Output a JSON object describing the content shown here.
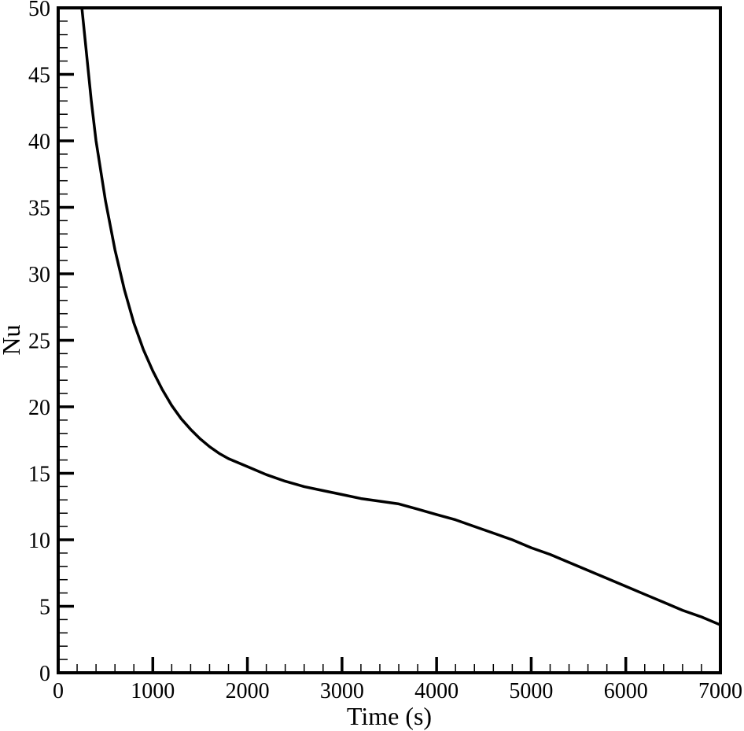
{
  "chart_data": {
    "type": "line",
    "title": "",
    "xlabel": "Time (s)",
    "ylabel": "Nu",
    "xlim": [
      0,
      7000
    ],
    "ylim": [
      0,
      50
    ],
    "grid": false,
    "legend": null,
    "x_ticks": [
      0,
      1000,
      2000,
      3000,
      4000,
      5000,
      6000,
      7000
    ],
    "x_tick_labels": [
      "0",
      "1000",
      "2000",
      "3000",
      "4000",
      "5000",
      "6000",
      "7000"
    ],
    "x_minor_step": 200,
    "y_ticks": [
      0,
      5,
      10,
      15,
      20,
      25,
      30,
      35,
      40,
      45,
      50
    ],
    "y_tick_labels": [
      "0",
      "5",
      "10",
      "15",
      "20",
      "25",
      "30",
      "35",
      "40",
      "45",
      "50"
    ],
    "y_minor_step": 1,
    "series": [
      {
        "name": "Nu",
        "color": "#000000",
        "x": [
          250,
          300,
          350,
          400,
          500,
          600,
          700,
          800,
          900,
          1000,
          1100,
          1200,
          1300,
          1400,
          1500,
          1600,
          1700,
          1800,
          2000,
          2200,
          2400,
          2600,
          2800,
          3000,
          3200,
          3400,
          3600,
          3800,
          4000,
          4200,
          4400,
          4600,
          4800,
          5000,
          5200,
          5400,
          5600,
          5800,
          6000,
          6200,
          6400,
          6600,
          6800,
          7000
        ],
        "y": [
          50,
          46.5,
          43,
          40,
          35.5,
          31.8,
          28.8,
          26.3,
          24.3,
          22.7,
          21.3,
          20.1,
          19.1,
          18.3,
          17.6,
          17.0,
          16.5,
          16.1,
          15.5,
          14.9,
          14.4,
          14.0,
          13.7,
          13.4,
          13.1,
          12.9,
          12.7,
          12.3,
          11.9,
          11.5,
          11.0,
          10.5,
          10.0,
          9.4,
          8.9,
          8.3,
          7.7,
          7.1,
          6.5,
          5.9,
          5.3,
          4.7,
          4.2,
          3.6
        ]
      }
    ]
  }
}
